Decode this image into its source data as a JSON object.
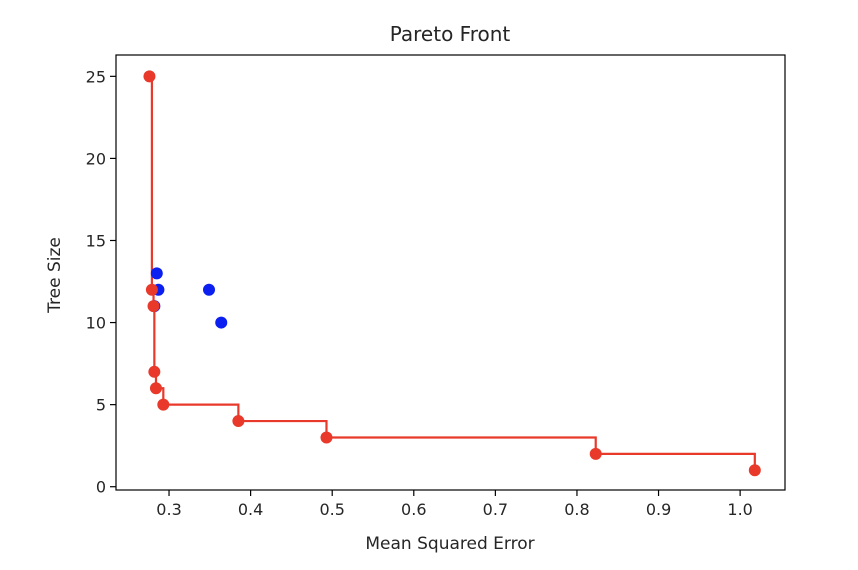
{
  "chart_data": {
    "type": "scatter",
    "title": "Pareto Front",
    "xlabel": "Mean Squared Error",
    "ylabel": "Tree Size",
    "xlim": [
      0.235,
      1.055
    ],
    "ylim": [
      -0.2,
      26.3
    ],
    "xticks": [
      0.3,
      0.4,
      0.5,
      0.6,
      0.7,
      0.8,
      0.9,
      1.0
    ],
    "xtick_labels": [
      "0.3",
      "0.4",
      "0.5",
      "0.6",
      "0.7",
      "0.8",
      "0.9",
      "1.0"
    ],
    "yticks": [
      0,
      5,
      10,
      15,
      20,
      25
    ],
    "ytick_labels": [
      "0",
      "5",
      "10",
      "15",
      "20",
      "25"
    ],
    "grid": false,
    "series": [
      {
        "color": "#0a1ff0",
        "type": "scatter",
        "points": [
          {
            "x": 0.285,
            "y": 13
          },
          {
            "x": 0.287,
            "y": 12
          },
          {
            "x": 0.282,
            "y": 11
          },
          {
            "x": 0.349,
            "y": 12
          },
          {
            "x": 0.364,
            "y": 10
          }
        ]
      },
      {
        "color": "#e8392b",
        "type": "step",
        "points": [
          {
            "x": 0.276,
            "y": 25
          },
          {
            "x": 0.279,
            "y": 12
          },
          {
            "x": 0.281,
            "y": 11
          },
          {
            "x": 0.282,
            "y": 7
          },
          {
            "x": 0.284,
            "y": 6
          },
          {
            "x": 0.293,
            "y": 5
          },
          {
            "x": 0.385,
            "y": 4
          },
          {
            "x": 0.493,
            "y": 3
          },
          {
            "x": 0.823,
            "y": 2
          },
          {
            "x": 1.018,
            "y": 1
          }
        ]
      }
    ]
  }
}
